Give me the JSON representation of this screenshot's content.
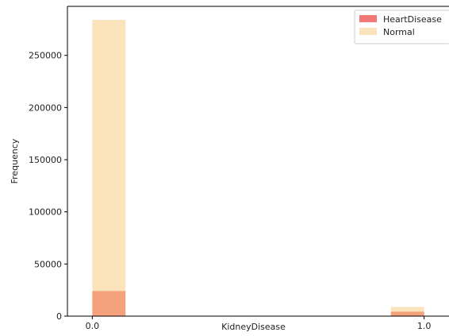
{
  "chart_data": {
    "type": "bar",
    "xlabel": "KidneyDisease",
    "ylabel": "Frequency",
    "x_ticks": [
      "0.0",
      "1.0"
    ],
    "y_ticks": [
      0,
      50000,
      100000,
      150000,
      200000,
      250000
    ],
    "ylim": [
      0,
      297000
    ],
    "xlim": [
      -0.075,
      1.075
    ],
    "grid": false,
    "legend_position": "top-right",
    "series": [
      {
        "name": "Normal",
        "color": "#fbe3bc",
        "bins": [
          {
            "x_start": 0.0,
            "x_end": 0.1,
            "value": 284000
          },
          {
            "x_start": 0.9,
            "x_end": 1.0,
            "value": 8800
          }
        ]
      },
      {
        "name": "HeartDisease",
        "color": "#f4a27c",
        "legend_color": "#f27777",
        "bins": [
          {
            "x_start": 0.0,
            "x_end": 0.1,
            "value": 24100
          },
          {
            "x_start": 0.9,
            "x_end": 1.0,
            "value": 4300
          }
        ]
      }
    ]
  }
}
